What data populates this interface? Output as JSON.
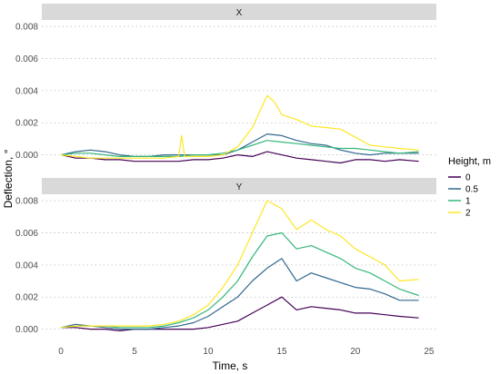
{
  "chart_data": {
    "type": "line",
    "xlabel": "Time, s",
    "ylabel": "Deflection, °",
    "xlim": [
      -1.3,
      25.5
    ],
    "ylim": [
      -0.0007,
      0.0084
    ],
    "x_ticks": [
      0,
      5,
      10,
      15,
      20,
      25
    ],
    "y_ticks": [
      0.0,
      0.002,
      0.004,
      0.006,
      0.008
    ],
    "y_tick_labels": [
      "0.000",
      "0.002",
      "0.004",
      "0.006",
      "0.008"
    ],
    "grid": "major-y dotted",
    "legend": {
      "title": "Height, m",
      "placement": "right",
      "entries": [
        "0",
        "0.5",
        "1",
        "2"
      ]
    },
    "colors": {
      "0": "#440154",
      "0.5": "#31688e",
      "1": "#35b779",
      "2": "#fde725",
      "strip_bg": "#d9d9d9",
      "grid": "#bebebe"
    },
    "panels": [
      {
        "title": "X",
        "series": [
          {
            "name": "0",
            "x": [
              0,
              1,
              2,
              3,
              4,
              5,
              6,
              7,
              8,
              9,
              10,
              11,
              12,
              13,
              14,
              15,
              16,
              17,
              18,
              19,
              20,
              21,
              22,
              23,
              24.3
            ],
            "y": [
              0.0,
              -0.0002,
              -0.0002,
              -0.0003,
              -0.0003,
              -0.0004,
              -0.0004,
              -0.0004,
              -0.0004,
              -0.0003,
              -0.0003,
              -0.0002,
              0.0,
              -0.0001,
              0.0002,
              0.0,
              -0.0002,
              -0.0003,
              -0.0004,
              -0.0005,
              -0.0003,
              -0.0003,
              -0.0004,
              -0.0003,
              -0.0004
            ]
          },
          {
            "name": "0.5",
            "x": [
              0,
              1,
              2,
              3,
              4,
              5,
              6,
              7,
              8,
              9,
              10,
              11,
              12,
              13,
              14,
              15,
              16,
              17,
              18,
              19,
              20,
              21,
              22,
              23,
              24.3
            ],
            "y": [
              0.0,
              0.0002,
              0.0003,
              0.0002,
              0.0,
              -0.0001,
              -0.0001,
              0.0,
              0.0,
              0.0,
              0.0,
              0.0,
              0.0003,
              0.0008,
              0.0013,
              0.0012,
              0.0009,
              0.0007,
              0.0006,
              0.0003,
              0.0001,
              0.0,
              0.0001,
              0.0001,
              0.0001
            ]
          },
          {
            "name": "1",
            "x": [
              0,
              1,
              2,
              3,
              4,
              5,
              6,
              7,
              8,
              9,
              10,
              11,
              12,
              13,
              14,
              15,
              16,
              17,
              18,
              19,
              20,
              21,
              22,
              23,
              24.3
            ],
            "y": [
              0.0,
              0.0001,
              0.0001,
              0.0,
              -0.0001,
              -0.0001,
              -0.0001,
              -0.0001,
              -0.0001,
              0.0,
              0.0,
              0.0001,
              0.0003,
              0.0006,
              0.0009,
              0.0008,
              0.0007,
              0.0006,
              0.0005,
              0.0004,
              0.0004,
              0.0003,
              0.0002,
              0.0001,
              0.0002
            ]
          },
          {
            "name": "2",
            "x": [
              0,
              1,
              2,
              3,
              4,
              5,
              6,
              7,
              8,
              8.2,
              8.4,
              9,
              10,
              11,
              12,
              13,
              14,
              14.5,
              15,
              16,
              17,
              18,
              19,
              20,
              21,
              22,
              23,
              24.3
            ],
            "y": [
              0.0,
              -0.0001,
              -0.0002,
              -0.0002,
              -0.0002,
              -0.0002,
              -0.0002,
              -0.0002,
              -0.0001,
              0.0012,
              -0.0001,
              -0.0001,
              -0.0001,
              0.0,
              0.0005,
              0.0017,
              0.0037,
              0.0033,
              0.0025,
              0.0022,
              0.0018,
              0.0017,
              0.0016,
              0.0011,
              0.0006,
              0.0005,
              0.0004,
              0.0003
            ]
          }
        ]
      },
      {
        "title": "Y",
        "series": [
          {
            "name": "0",
            "x": [
              0,
              1,
              2,
              3,
              4,
              5,
              6,
              7,
              8,
              9,
              10,
              11,
              12,
              13,
              14,
              15,
              16,
              17,
              18,
              19,
              20,
              21,
              22,
              23,
              24.3
            ],
            "y": [
              0.0001,
              0.0001,
              0.0,
              0.0,
              -0.0001,
              0.0,
              0.0,
              0.0,
              0.0,
              0.0,
              0.0001,
              0.0003,
              0.0005,
              0.001,
              0.0015,
              0.002,
              0.0012,
              0.0014,
              0.0013,
              0.0012,
              0.001,
              0.001,
              0.0009,
              0.0008,
              0.0007
            ]
          },
          {
            "name": "0.5",
            "x": [
              0,
              1,
              2,
              3,
              4,
              5,
              6,
              7,
              8,
              9,
              10,
              11,
              12,
              13,
              14,
              15,
              16,
              17,
              18,
              19,
              20,
              21,
              22,
              23,
              24.3
            ],
            "y": [
              0.0001,
              0.0003,
              0.0002,
              0.0001,
              0.0,
              0.0,
              0.0,
              0.0001,
              0.0002,
              0.0004,
              0.0008,
              0.0014,
              0.002,
              0.003,
              0.0038,
              0.0044,
              0.003,
              0.0035,
              0.0032,
              0.0029,
              0.0026,
              0.0025,
              0.0022,
              0.0018,
              0.0018
            ]
          },
          {
            "name": "1",
            "x": [
              0,
              1,
              2,
              3,
              4,
              5,
              6,
              7,
              8,
              9,
              10,
              11,
              12,
              13,
              14,
              15,
              16,
              17,
              18,
              19,
              20,
              21,
              22,
              23,
              24.3
            ],
            "y": [
              0.0001,
              0.0002,
              0.0002,
              0.0002,
              0.0001,
              0.0001,
              0.0001,
              0.0002,
              0.0004,
              0.0007,
              0.0012,
              0.002,
              0.003,
              0.0045,
              0.0058,
              0.006,
              0.005,
              0.0052,
              0.0048,
              0.0044,
              0.0038,
              0.0035,
              0.003,
              0.0025,
              0.0021
            ]
          },
          {
            "name": "2",
            "x": [
              0,
              1,
              2,
              3,
              4,
              5,
              6,
              7,
              8,
              9,
              10,
              11,
              12,
              13,
              14,
              15,
              16,
              17,
              18,
              19,
              20,
              21,
              22,
              23,
              24.3
            ],
            "y": [
              0.0001,
              0.0002,
              0.0002,
              0.0002,
              0.0002,
              0.0002,
              0.0002,
              0.0003,
              0.0005,
              0.0009,
              0.0015,
              0.0026,
              0.004,
              0.006,
              0.008,
              0.0075,
              0.0062,
              0.0068,
              0.0062,
              0.0058,
              0.005,
              0.0045,
              0.004,
              0.003,
              0.0031
            ]
          }
        ]
      }
    ]
  }
}
